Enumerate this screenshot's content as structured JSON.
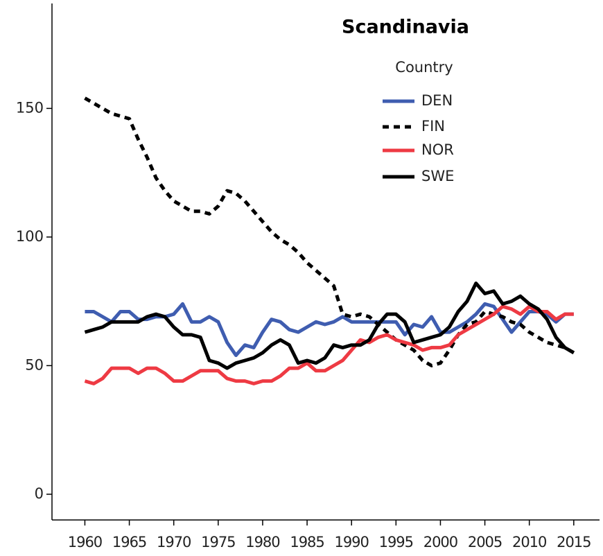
{
  "chart_data": {
    "type": "line",
    "title": "Scandinavia",
    "legend_title": "Country",
    "legend": "upper right",
    "x": [
      1960,
      1961,
      1962,
      1963,
      1964,
      1965,
      1966,
      1967,
      1968,
      1969,
      1970,
      1971,
      1972,
      1973,
      1974,
      1975,
      1976,
      1977,
      1978,
      1979,
      1980,
      1981,
      1982,
      1983,
      1984,
      1985,
      1986,
      1987,
      1988,
      1989,
      1990,
      1991,
      1992,
      1993,
      1994,
      1995,
      1996,
      1997,
      1998,
      1999,
      2000,
      2001,
      2002,
      2003,
      2004,
      2005,
      2006,
      2007,
      2008,
      2009,
      2010,
      2011,
      2012,
      2013,
      2014,
      2015
    ],
    "series": [
      {
        "name": "DEN",
        "color": "#3f5db0",
        "dash": false,
        "values": [
          71,
          71,
          69,
          67,
          71,
          71,
          68,
          68,
          69,
          69,
          70,
          74,
          67,
          67,
          69,
          67,
          59,
          54,
          58,
          57,
          63,
          68,
          67,
          64,
          63,
          65,
          67,
          66,
          67,
          69,
          67,
          67,
          67,
          67,
          67,
          67,
          62,
          66,
          65,
          69,
          63,
          63,
          65,
          67,
          70,
          74,
          73,
          68,
          63,
          67,
          71,
          71,
          70,
          67,
          70,
          70
        ]
      },
      {
        "name": "FIN",
        "color": "#000000",
        "dash": true,
        "values": [
          154,
          152,
          150,
          148,
          147,
          146,
          138,
          131,
          123,
          118,
          114,
          112,
          110,
          110,
          109,
          112,
          118,
          117,
          114,
          110,
          106,
          102,
          99,
          97,
          94,
          90,
          87,
          84,
          81,
          70,
          69,
          70,
          69,
          66,
          63,
          60,
          58,
          56,
          52,
          50,
          51,
          56,
          62,
          66,
          67,
          71,
          70,
          69,
          67,
          66,
          63,
          61,
          59,
          58,
          57,
          55
        ]
      },
      {
        "name": "NOR",
        "color": "#ee3a43",
        "dash": false,
        "values": [
          44,
          43,
          45,
          49,
          49,
          49,
          47,
          49,
          49,
          47,
          44,
          44,
          46,
          48,
          48,
          48,
          45,
          44,
          44,
          43,
          44,
          44,
          46,
          49,
          49,
          51,
          48,
          48,
          50,
          52,
          56,
          60,
          59,
          61,
          62,
          60,
          59,
          58,
          56,
          57,
          57,
          58,
          62,
          64,
          66,
          68,
          70,
          73,
          72,
          70,
          73,
          71,
          71,
          68,
          70,
          70
        ]
      },
      {
        "name": "SWE",
        "color": "#000000",
        "dash": false,
        "values": [
          63,
          64,
          65,
          67,
          67,
          67,
          67,
          69,
          70,
          69,
          65,
          62,
          62,
          61,
          52,
          51,
          49,
          51,
          52,
          53,
          55,
          58,
          60,
          58,
          51,
          52,
          51,
          53,
          58,
          57,
          58,
          58,
          60,
          66,
          70,
          70,
          67,
          59,
          60,
          61,
          62,
          65,
          71,
          75,
          82,
          78,
          79,
          74,
          75,
          77,
          74,
          72,
          68,
          61,
          57,
          55
        ]
      }
    ],
    "xlim": [
      1956.3,
      2017.9
    ],
    "ylim": [
      -10,
      190.8
    ],
    "xticks": [
      1960,
      1965,
      1970,
      1975,
      1980,
      1985,
      1990,
      1995,
      2000,
      2005,
      2010,
      2015
    ],
    "yticks": [
      0,
      50,
      100,
      150
    ]
  }
}
